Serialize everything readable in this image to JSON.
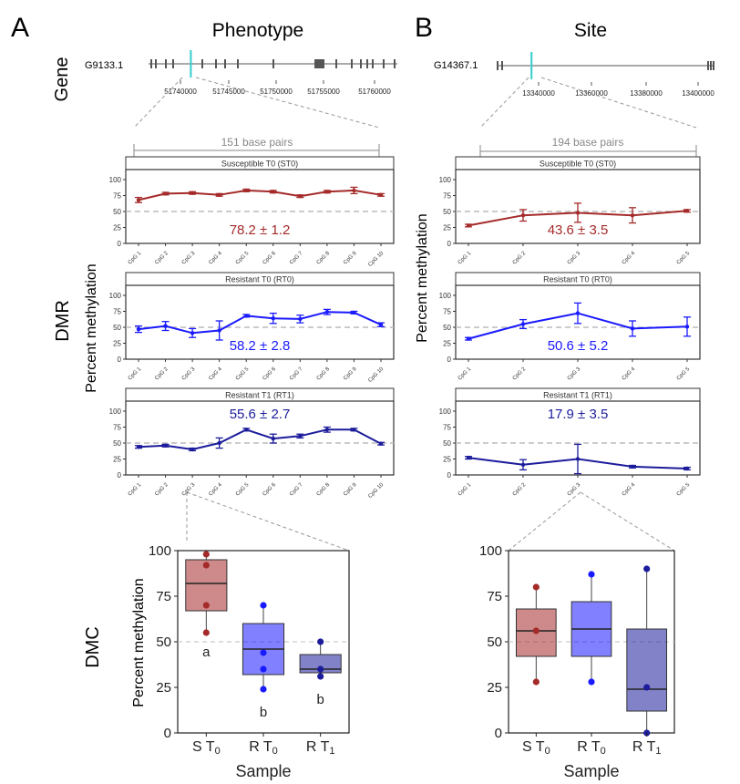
{
  "panels": [
    {
      "letter": "A",
      "title": "Phenotype",
      "gene": {
        "id": "G9133.1",
        "ticks": [
          "51740000",
          "51745000",
          "51750000",
          "51755000",
          "51760000"
        ],
        "highlight_fraction": 0.17
      },
      "bp_label": "151 base pairs",
      "ylabel": "Percent methylation",
      "dmc_ylabel": "Percent methylation"
    },
    {
      "letter": "B",
      "title": "Site",
      "gene": {
        "id": "G14367.1",
        "ticks": [
          "13340000",
          "13360000",
          "13380000",
          "13400000"
        ],
        "highlight_fraction": 0.16
      },
      "bp_label": "194 base pairs",
      "ylabel": "Percent methylation",
      "dmc_ylabel": ""
    }
  ],
  "row_labels": {
    "gene": "Gene",
    "dmr": "DMR",
    "dmc": "DMC"
  },
  "colors": {
    "st0": "#a52a2a",
    "rt0": "#1a1aff",
    "rt1": "#1c1c9c"
  },
  "chart_data": [
    {
      "type": "line",
      "panel": "A",
      "title": "Susceptible T0 (ST0)",
      "categories": [
        "CpG 1",
        "CpG 2",
        "CpG 3",
        "CpG 4",
        "CpG 5",
        "CpG 6",
        "CpG 7",
        "CpG 8",
        "CpG 9",
        "CpG 10"
      ],
      "yticks": [
        0,
        25,
        50,
        75,
        100
      ],
      "ylim": [
        0,
        110
      ],
      "reference_line": 50,
      "values": [
        68,
        78,
        79,
        76,
        83,
        81,
        74,
        81,
        83,
        76
      ],
      "err": [
        4,
        2,
        2,
        2,
        2,
        2,
        2,
        2,
        5,
        2
      ],
      "annotation": "78.2 ± 1.2"
    },
    {
      "type": "line",
      "panel": "A",
      "title": "Resistant T0 (RT0)",
      "categories": [
        "CpG 1",
        "CpG 2",
        "CpG 3",
        "CpG 4",
        "CpG 5",
        "CpG 6",
        "CpG 7",
        "CpG 8",
        "CpG 9",
        "CpG 10"
      ],
      "yticks": [
        0,
        25,
        50,
        75,
        100
      ],
      "ylim": [
        0,
        110
      ],
      "reference_line": 50,
      "values": [
        47,
        52,
        41,
        45,
        68,
        64,
        63,
        74,
        73,
        54
      ],
      "err": [
        5,
        7,
        7,
        15,
        2,
        8,
        6,
        4,
        2,
        3
      ],
      "annotation": "58.2 ± 2.8"
    },
    {
      "type": "line",
      "panel": "A",
      "title": "Resistant T1 (RT1)",
      "categories": [
        "CpG 1",
        "CpG 2",
        "CpG 3",
        "CpG 4",
        "CpG 5",
        "CpG 6",
        "CpG 7",
        "CpG 8",
        "CpG 9",
        "CpG 10"
      ],
      "yticks": [
        0,
        25,
        50,
        75,
        100
      ],
      "ylim": [
        0,
        110
      ],
      "reference_line": 50,
      "values": [
        44,
        46,
        40,
        50,
        71,
        57,
        61,
        71,
        71,
        49
      ],
      "err": [
        2,
        2,
        2,
        8,
        2,
        7,
        3,
        4,
        2,
        2
      ],
      "annotation": "55.6 ± 2.7"
    },
    {
      "type": "line",
      "panel": "B",
      "title": "Susceptible T0 (ST0)",
      "categories": [
        "CpG 1",
        "CpG 2",
        "CpG 3",
        "CpG 4",
        "CpG 5"
      ],
      "yticks": [
        0,
        25,
        50,
        75,
        100
      ],
      "ylim": [
        0,
        110
      ],
      "reference_line": 50,
      "values": [
        28,
        44,
        48,
        44,
        51
      ],
      "err": [
        2,
        9,
        15,
        12,
        2
      ],
      "annotation": "43.6 ± 3.5"
    },
    {
      "type": "line",
      "panel": "B",
      "title": "Resistant T0 (RT0)",
      "categories": [
        "CpG 1",
        "CpG 2",
        "CpG 3",
        "CpG 4",
        "CpG 5"
      ],
      "yticks": [
        0,
        25,
        50,
        75,
        100
      ],
      "ylim": [
        0,
        110
      ],
      "reference_line": 50,
      "values": [
        32,
        55,
        72,
        48,
        51
      ],
      "err": [
        2,
        7,
        16,
        12,
        15
      ],
      "annotation": "50.6 ± 5.2"
    },
    {
      "type": "line",
      "panel": "B",
      "title": "Resistant T1 (RT1)",
      "categories": [
        "CpG 1",
        "CpG 2",
        "CpG 3",
        "CpG 4",
        "CpG 5"
      ],
      "yticks": [
        0,
        25,
        50,
        75,
        100
      ],
      "ylim": [
        0,
        110
      ],
      "reference_line": 50,
      "values": [
        27,
        16,
        25,
        13,
        10
      ],
      "err": [
        2,
        8,
        23,
        2,
        2
      ],
      "annotation": "17.9 ± 3.5"
    },
    {
      "type": "box",
      "panel": "A",
      "xlabel": "Sample",
      "ylim": [
        0,
        100
      ],
      "yticks": [
        0,
        25,
        50,
        75,
        100
      ],
      "reference_line": 50,
      "groups": [
        {
          "label": "S T",
          "sub": "0",
          "q1": 67,
          "median": 82,
          "q3": 95,
          "min": 55,
          "max": 98,
          "points": [
            98,
            92,
            70,
            55
          ],
          "letter": "a",
          "color_key": "st0"
        },
        {
          "label": "R T",
          "sub": "0",
          "q1": 32,
          "median": 46,
          "q3": 60,
          "min": 24,
          "max": 70,
          "points": [
            70,
            44,
            35,
            24
          ],
          "letter": "b",
          "color_key": "rt0"
        },
        {
          "label": "R T",
          "sub": "1",
          "q1": 33,
          "median": 35,
          "q3": 43,
          "min": 31,
          "max": 50,
          "points": [
            50,
            35,
            31
          ],
          "letter": "b",
          "color_key": "rt1"
        }
      ]
    },
    {
      "type": "box",
      "panel": "B",
      "xlabel": "Sample",
      "ylim": [
        0,
        100
      ],
      "yticks": [
        0,
        25,
        50,
        75,
        100
      ],
      "reference_line": 50,
      "groups": [
        {
          "label": "S T",
          "sub": "0",
          "q1": 42,
          "median": 56,
          "q3": 68,
          "min": 28,
          "max": 80,
          "points": [
            80,
            56,
            28
          ],
          "letter": "",
          "color_key": "st0"
        },
        {
          "label": "R T",
          "sub": "0",
          "q1": 42,
          "median": 57,
          "q3": 72,
          "min": 28,
          "max": 87,
          "points": [
            87,
            28
          ],
          "letter": "",
          "color_key": "rt0"
        },
        {
          "label": "R T",
          "sub": "1",
          "q1": 12,
          "median": 24,
          "q3": 57,
          "min": 0,
          "max": 90,
          "points": [
            90,
            25,
            0
          ],
          "letter": "",
          "color_key": "rt1"
        }
      ]
    }
  ]
}
